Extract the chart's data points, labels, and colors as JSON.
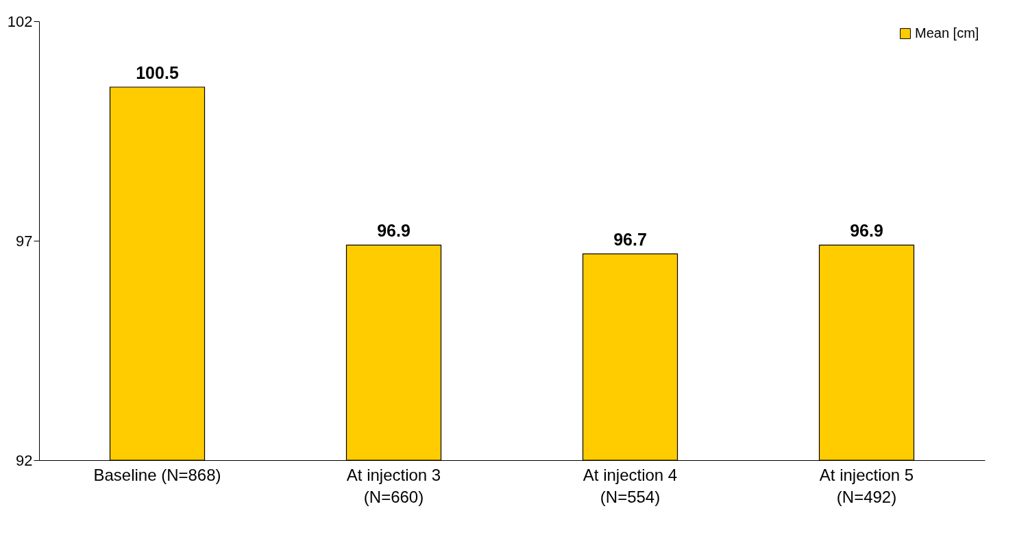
{
  "chart_data": {
    "type": "bar",
    "categories": [
      "Baseline (N=868)",
      "At injection 3 (N=660)",
      "At injection 4 (N=554)",
      "At injection 5 (N=492)"
    ],
    "series": [
      {
        "name": "Mean [cm]",
        "color": "#ffcc00",
        "values": [
          100.5,
          96.9,
          96.7,
          96.9
        ]
      }
    ],
    "ylim": [
      92,
      102
    ],
    "yticks": [
      92,
      97,
      102
    ],
    "grid": false,
    "legend": "top right",
    "data_labels": true
  }
}
